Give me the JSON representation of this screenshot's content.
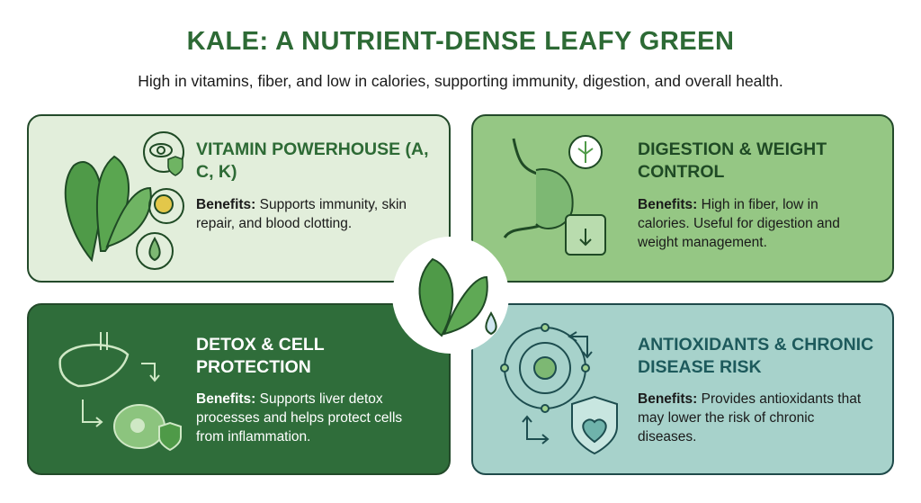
{
  "title": "KALE: A NUTRIENT-DENSE LEAFY GREEN",
  "subtitle": "High in vitamins, fiber, and low in calories, supporting immunity, digestion, and overall health.",
  "colors": {
    "title": "#2d6a35",
    "card1": "#e2eedb",
    "card2": "#95c784",
    "card3": "#2f6d3a",
    "card4": "#a7d2cb"
  },
  "cards": [
    {
      "title": "VITAMIN POWERHOUSE (A, C, K)",
      "benefits_label": "Benefits:",
      "body": " Supports immunity, skin repair, and blood clotting.",
      "icons": [
        "kale-leaf-icon",
        "eye-shield-icon",
        "citrus-icon",
        "droplet-icon"
      ]
    },
    {
      "title": "DIGESTION & WEIGHT CONTROL",
      "benefits_label": "Benefits:",
      "body": " High in fiber, low in calories. Useful for digestion and weight management.",
      "icons": [
        "stomach-icon",
        "grain-icon",
        "scale-icon"
      ]
    },
    {
      "title": "DETOX & CELL PROTECTION",
      "benefits_label": "Benefits:",
      "body": " Supports liver detox processes and helps protect cells from inflammation.",
      "icons": [
        "liver-icon",
        "cell-icon",
        "shield-icon"
      ]
    },
    {
      "title": "ANTIOXIDANTS & CHRONIC DISEASE RISK",
      "benefits_label": "Benefits:",
      "body": " Provides antioxidants that may lower the risk of chronic diseases.",
      "icons": [
        "molecule-icon",
        "heart-shield-icon"
      ]
    }
  ]
}
